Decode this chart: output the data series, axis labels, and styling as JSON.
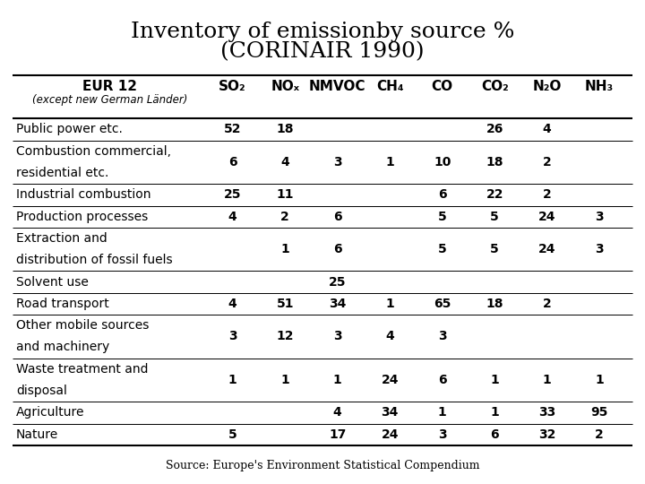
{
  "title_line1": "Inventory of emissionby source %",
  "title_line2": "(CORINAIR 1990)",
  "source_text": "Source: Europe's Environment Statistical Compendium",
  "col_header_main": "EUR 12",
  "col_header_sub": "(except new German Länder)",
  "col_headers": [
    "SO₂",
    "NOₓ",
    "NMVOC",
    "CH₄",
    "CO",
    "CO₂",
    "N₂O",
    "NH₃"
  ],
  "rows": [
    {
      "label": "Public power etc.",
      "values": [
        "52",
        "18",
        "",
        "",
        "",
        "26",
        "4",
        ""
      ]
    },
    {
      "label": "Combustion commercial,\nresidential etc.",
      "values": [
        "6",
        "4",
        "3",
        "1",
        "10",
        "18",
        "2",
        ""
      ]
    },
    {
      "label": "Industrial combustion",
      "values": [
        "25",
        "11",
        "",
        "",
        "6",
        "22",
        "2",
        ""
      ]
    },
    {
      "label": "Production processes",
      "values": [
        "4",
        "2",
        "6",
        "",
        "5",
        "5",
        "24",
        "3"
      ]
    },
    {
      "label": "Extraction and\ndistribution of fossil fuels",
      "values": [
        "",
        "1",
        "6",
        "",
        "5",
        "5",
        "24",
        "3"
      ]
    },
    {
      "label": "Solvent use",
      "values": [
        "",
        "",
        "25",
        "",
        "",
        "",
        "",
        ""
      ]
    },
    {
      "label": "Road transport",
      "values": [
        "4",
        "51",
        "34",
        "1",
        "65",
        "18",
        "2",
        ""
      ]
    },
    {
      "label": "Other mobile sources\nand machinery",
      "values": [
        "3",
        "12",
        "3",
        "4",
        "3",
        "",
        "",
        ""
      ]
    },
    {
      "label": "Waste treatment and\ndisposal",
      "values": [
        "1",
        "1",
        "1",
        "24",
        "6",
        "1",
        "1",
        "1"
      ]
    },
    {
      "label": "Agriculture",
      "values": [
        "",
        "",
        "4",
        "34",
        "1",
        "1",
        "33",
        "95"
      ]
    },
    {
      "label": "Nature",
      "values": [
        "5",
        "",
        "17",
        "24",
        "3",
        "6",
        "32",
        "2"
      ]
    }
  ],
  "background_color": "#ffffff",
  "title_fontsize": 18,
  "header_fontsize": 11,
  "cell_fontsize": 10,
  "source_fontsize": 9
}
